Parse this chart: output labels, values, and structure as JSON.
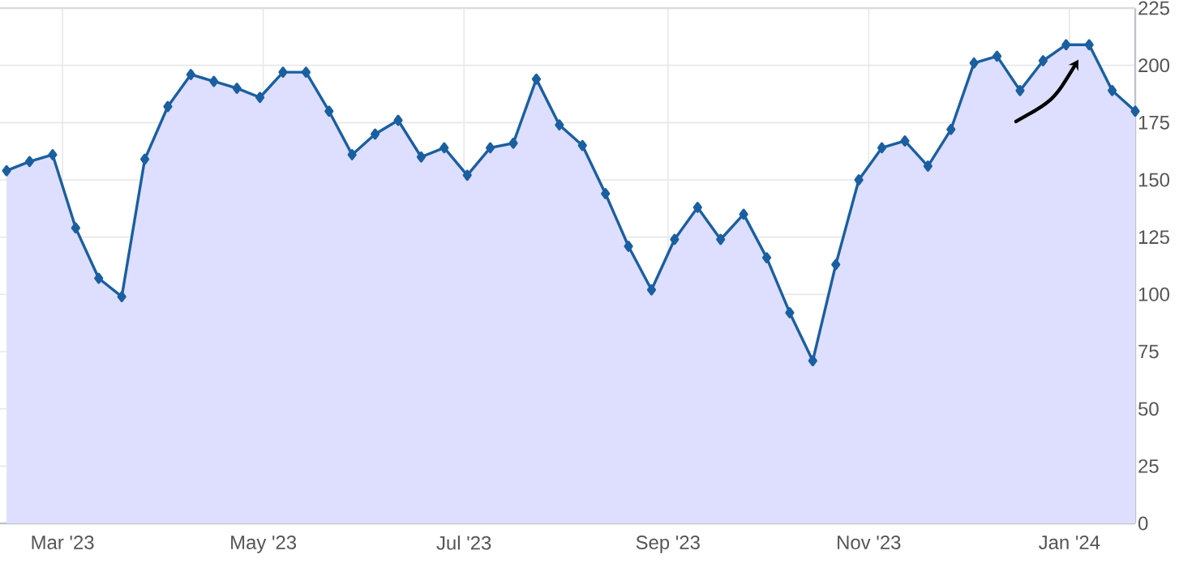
{
  "chart_data": {
    "type": "area",
    "x": [
      "2023-02-12",
      "2023-02-19",
      "2023-02-26",
      "2023-03-05",
      "2023-03-12",
      "2023-03-19",
      "2023-03-26",
      "2023-04-02",
      "2023-04-09",
      "2023-04-16",
      "2023-04-23",
      "2023-04-30",
      "2023-05-07",
      "2023-05-14",
      "2023-05-21",
      "2023-05-28",
      "2023-06-04",
      "2023-06-11",
      "2023-06-18",
      "2023-06-25",
      "2023-07-02",
      "2023-07-09",
      "2023-07-16",
      "2023-07-23",
      "2023-07-30",
      "2023-08-06",
      "2023-08-13",
      "2023-08-20",
      "2023-08-27",
      "2023-09-03",
      "2023-09-10",
      "2023-09-17",
      "2023-09-24",
      "2023-10-01",
      "2023-10-08",
      "2023-10-15",
      "2023-10-22",
      "2023-10-29",
      "2023-11-05",
      "2023-11-12",
      "2023-11-19",
      "2023-11-26",
      "2023-12-03",
      "2023-12-10",
      "2023-12-17",
      "2023-12-24",
      "2023-12-31",
      "2024-01-07",
      "2024-01-14",
      "2024-01-21"
    ],
    "series": [
      {
        "color": "#1a5fa0",
        "values": [
          154,
          158,
          161,
          129,
          107,
          99,
          159,
          182,
          196,
          193,
          190,
          186,
          197,
          197,
          180,
          161,
          170,
          176,
          160,
          164,
          152,
          164,
          166,
          194,
          174,
          165,
          144,
          121,
          102,
          124,
          138,
          124,
          135,
          116,
          92,
          71,
          113,
          150,
          164,
          167,
          156,
          172,
          201,
          204,
          189,
          202,
          209,
          209,
          189,
          180
        ]
      }
    ],
    "xlim": [
      "2023-02-10",
      "2024-01-21"
    ],
    "xticks": [
      {
        "value": "2023-03-01",
        "label": "Mar '23"
      },
      {
        "value": "2023-05-01",
        "label": "May '23"
      },
      {
        "value": "2023-07-01",
        "label": "Jul '23"
      },
      {
        "value": "2023-09-01",
        "label": "Sep '23"
      },
      {
        "value": "2023-11-01",
        "label": "Nov '23"
      },
      {
        "value": "2024-01-01",
        "label": "Jan '24"
      }
    ],
    "ylim": [
      0,
      225
    ],
    "yticks": [
      0,
      25,
      50,
      75,
      100,
      125,
      150,
      175,
      200,
      225
    ],
    "grid": true,
    "marker": "diamond",
    "line_style": "solid"
  }
}
